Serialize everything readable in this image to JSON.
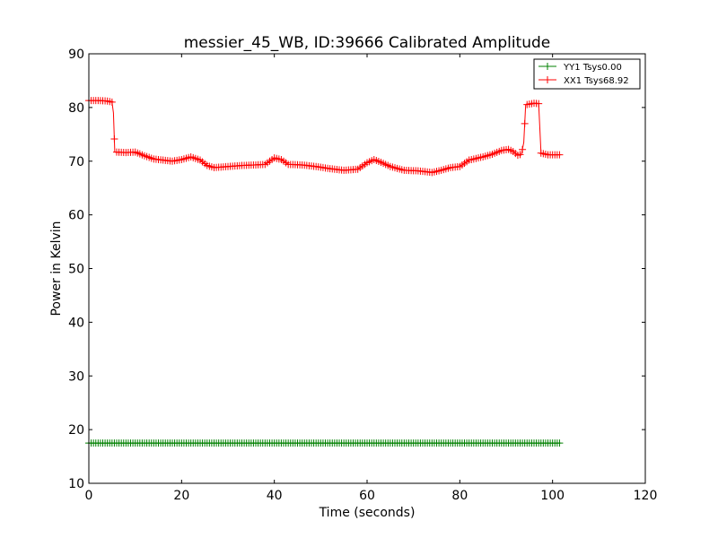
{
  "chart_data": {
    "type": "line",
    "title": "messier_45_WB, ID:39666 Calibrated Amplitude",
    "xlabel": "Time (seconds)",
    "ylabel": "Power in Kelvin",
    "xlim": [
      0,
      120
    ],
    "ylim": [
      10,
      90
    ],
    "xticks": [
      0,
      20,
      40,
      60,
      80,
      100,
      120
    ],
    "yticks": [
      10,
      20,
      30,
      40,
      50,
      60,
      70,
      80,
      90
    ],
    "grid": false,
    "legend_position": "top-right",
    "series": [
      {
        "name": "YY1 Tsys0.00",
        "color": "#008000",
        "marker": "+",
        "points": [
          [
            0,
            17.5
          ],
          [
            10,
            17.5
          ],
          [
            20,
            17.5
          ],
          [
            30,
            17.5
          ],
          [
            40,
            17.5
          ],
          [
            50,
            17.5
          ],
          [
            60,
            17.5
          ],
          [
            70,
            17.5
          ],
          [
            80,
            17.5
          ],
          [
            90,
            17.5
          ],
          [
            101.5,
            17.5
          ]
        ]
      },
      {
        "name": "XX1 Tsys68.92",
        "color": "#ff0000",
        "marker": "+",
        "points": [
          [
            0,
            81.3
          ],
          [
            2,
            81.3
          ],
          [
            4,
            81.2
          ],
          [
            5,
            81.0
          ],
          [
            5.3,
            79.0
          ],
          [
            5.6,
            71.7
          ],
          [
            8,
            71.6
          ],
          [
            10,
            71.7
          ],
          [
            12,
            71.0
          ],
          [
            14,
            70.4
          ],
          [
            16,
            70.2
          ],
          [
            18,
            70.0
          ],
          [
            20,
            70.3
          ],
          [
            22,
            70.8
          ],
          [
            24,
            70.2
          ],
          [
            25.5,
            69.2
          ],
          [
            27,
            68.8
          ],
          [
            30,
            69.0
          ],
          [
            33,
            69.2
          ],
          [
            36,
            69.3
          ],
          [
            38,
            69.4
          ],
          [
            40,
            70.6
          ],
          [
            41.5,
            70.3
          ],
          [
            43,
            69.4
          ],
          [
            46,
            69.3
          ],
          [
            49,
            69.0
          ],
          [
            52,
            68.6
          ],
          [
            55,
            68.3
          ],
          [
            58,
            68.5
          ],
          [
            60,
            69.7
          ],
          [
            61.5,
            70.3
          ],
          [
            63,
            69.8
          ],
          [
            65,
            69.0
          ],
          [
            68,
            68.3
          ],
          [
            71,
            68.2
          ],
          [
            74,
            67.9
          ],
          [
            76,
            68.3
          ],
          [
            78,
            68.8
          ],
          [
            80,
            69.0
          ],
          [
            82,
            70.2
          ],
          [
            85,
            70.8
          ],
          [
            87,
            71.3
          ],
          [
            89,
            72.0
          ],
          [
            90.5,
            72.2
          ],
          [
            91.5,
            71.8
          ],
          [
            92.5,
            71.1
          ],
          [
            93.3,
            71.3
          ],
          [
            93.8,
            73.5
          ],
          [
            94.2,
            80.5
          ],
          [
            96,
            80.8
          ],
          [
            97,
            80.7
          ],
          [
            97.5,
            71.5
          ],
          [
            99,
            71.2
          ],
          [
            101.5,
            71.2
          ]
        ]
      }
    ]
  }
}
